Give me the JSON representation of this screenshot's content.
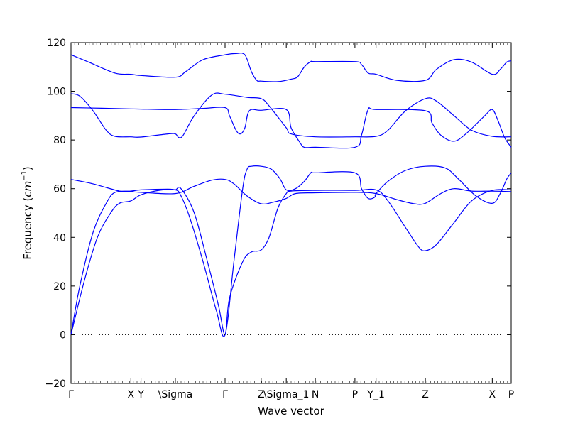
{
  "chart_data": {
    "type": "line",
    "title": "",
    "xlabel": "Wave vector",
    "ylabel": "Frequency (cm^-1)",
    "ylabel_parts": {
      "prefix": "Frequency (",
      "unit_base": "cm",
      "unit_exp": "−1",
      "suffix": ")"
    },
    "ylim": [
      -20,
      120
    ],
    "yticks": [
      "−20",
      "0",
      "20",
      "40",
      "60",
      "80",
      "100",
      "120"
    ],
    "ytick_values": [
      -20,
      0,
      20,
      40,
      60,
      80,
      100,
      120
    ],
    "xlim": [
      0,
      1
    ],
    "xticks": [
      {
        "x": 0.0,
        "label": "Γ"
      },
      {
        "x": 0.136,
        "label": "X"
      },
      {
        "x": 0.159,
        "label": "Y"
      },
      {
        "x": 0.237,
        "label": "\\Sigma"
      },
      {
        "x": 0.35,
        "label": "Γ"
      },
      {
        "x": 0.432,
        "label": "Z"
      },
      {
        "x": 0.489,
        "label": "\\Sigma_1"
      },
      {
        "x": 0.555,
        "label": "N"
      },
      {
        "x": 0.645,
        "label": "P"
      },
      {
        "x": 0.693,
        "label": "Y_1"
      },
      {
        "x": 0.805,
        "label": "Z"
      },
      {
        "x": 0.957,
        "label": "X"
      },
      {
        "x": 1.0,
        "label": "P"
      }
    ],
    "zero_line": true,
    "grid": false,
    "legend": "none",
    "color": "#0000ff",
    "series": [
      {
        "points": [
          [
            0,
            115
          ],
          [
            0.04,
            112
          ],
          [
            0.1,
            107.5
          ],
          [
            0.136,
            107
          ],
          [
            0.159,
            106.5
          ],
          [
            0.237,
            105.8
          ],
          [
            0.26,
            108
          ],
          [
            0.3,
            113
          ],
          [
            0.35,
            115
          ],
          [
            0.375,
            115.5
          ],
          [
            0.395,
            115
          ],
          [
            0.41,
            108
          ],
          [
            0.422,
            104.5
          ],
          [
            0.432,
            104.2
          ],
          [
            0.47,
            104
          ],
          [
            0.5,
            105
          ],
          [
            0.515,
            106
          ],
          [
            0.53,
            110
          ],
          [
            0.545,
            112.2
          ],
          [
            0.555,
            112.2
          ],
          [
            0.645,
            112.2
          ],
          [
            0.66,
            111
          ],
          [
            0.675,
            107.5
          ],
          [
            0.693,
            107
          ],
          [
            0.74,
            104.5
          ],
          [
            0.805,
            104.5
          ],
          [
            0.83,
            109
          ],
          [
            0.87,
            113
          ],
          [
            0.91,
            112
          ],
          [
            0.957,
            107
          ],
          [
            0.975,
            109
          ],
          [
            0.99,
            112
          ],
          [
            1.0,
            112.5
          ]
        ]
      },
      {
        "points": [
          [
            0,
            99
          ],
          [
            0.02,
            98
          ],
          [
            0.05,
            92
          ],
          [
            0.08,
            84
          ],
          [
            0.1,
            81.5
          ],
          [
            0.136,
            81.3
          ],
          [
            0.159,
            81.2
          ],
          [
            0.22,
            82.5
          ],
          [
            0.237,
            82.5
          ],
          [
            0.245,
            81
          ],
          [
            0.255,
            82
          ],
          [
            0.28,
            90
          ],
          [
            0.32,
            98.5
          ],
          [
            0.35,
            98.8
          ],
          [
            0.4,
            97.5
          ],
          [
            0.432,
            97
          ],
          [
            0.45,
            94
          ],
          [
            0.489,
            85
          ],
          [
            0.5,
            82.5
          ],
          [
            0.555,
            81.3
          ],
          [
            0.645,
            81.3
          ],
          [
            0.693,
            81.5
          ],
          [
            0.72,
            84
          ],
          [
            0.76,
            92
          ],
          [
            0.805,
            97
          ],
          [
            0.83,
            96
          ],
          [
            0.87,
            90
          ],
          [
            0.91,
            84
          ],
          [
            0.957,
            81.5
          ],
          [
            1.0,
            81.3
          ]
        ]
      },
      {
        "points": [
          [
            0,
            93.3
          ],
          [
            0.136,
            92.8
          ],
          [
            0.159,
            92.7
          ],
          [
            0.237,
            92.5
          ],
          [
            0.3,
            93
          ],
          [
            0.35,
            93.3
          ],
          [
            0.36,
            90
          ],
          [
            0.375,
            84
          ],
          [
            0.385,
            82.5
          ],
          [
            0.395,
            85
          ],
          [
            0.405,
            92
          ],
          [
            0.432,
            92.2
          ],
          [
            0.489,
            92.5
          ],
          [
            0.5,
            85
          ],
          [
            0.52,
            79
          ],
          [
            0.53,
            77
          ],
          [
            0.555,
            77
          ],
          [
            0.645,
            77
          ],
          [
            0.66,
            82
          ],
          [
            0.675,
            92.5
          ],
          [
            0.693,
            92.5
          ],
          [
            0.805,
            92
          ],
          [
            0.82,
            87
          ],
          [
            0.84,
            82
          ],
          [
            0.87,
            79.5
          ],
          [
            0.9,
            83
          ],
          [
            0.94,
            90
          ],
          [
            0.957,
            92.5
          ],
          [
            0.97,
            88
          ],
          [
            0.985,
            81
          ],
          [
            1.0,
            77
          ]
        ]
      },
      {
        "points": [
          [
            0,
            63.8
          ],
          [
            0.05,
            62
          ],
          [
            0.11,
            59
          ],
          [
            0.136,
            58.8
          ],
          [
            0.159,
            58.5
          ],
          [
            0.237,
            58
          ],
          [
            0.28,
            61
          ],
          [
            0.32,
            63.5
          ],
          [
            0.35,
            63.8
          ],
          [
            0.37,
            62
          ],
          [
            0.4,
            57
          ],
          [
            0.432,
            53.8
          ],
          [
            0.46,
            54.5
          ],
          [
            0.489,
            56
          ],
          [
            0.51,
            58
          ],
          [
            0.555,
            58.3
          ],
          [
            0.645,
            58.5
          ],
          [
            0.693,
            58
          ],
          [
            0.74,
            55.5
          ],
          [
            0.78,
            53.8
          ],
          [
            0.805,
            54
          ],
          [
            0.84,
            58
          ],
          [
            0.87,
            60
          ],
          [
            0.91,
            59
          ],
          [
            0.957,
            59
          ],
          [
            1.0,
            58.8
          ]
        ]
      },
      {
        "points": [
          [
            0,
            0
          ],
          [
            0.02,
            20
          ],
          [
            0.05,
            42
          ],
          [
            0.08,
            54
          ],
          [
            0.1,
            58.5
          ],
          [
            0.136,
            59
          ],
          [
            0.159,
            59.5
          ],
          [
            0.22,
            59.8
          ],
          [
            0.237,
            59.5
          ],
          [
            0.25,
            60
          ],
          [
            0.28,
            50
          ],
          [
            0.31,
            30
          ],
          [
            0.335,
            12
          ],
          [
            0.35,
            0
          ],
          [
            0.36,
            15
          ],
          [
            0.39,
            30
          ],
          [
            0.41,
            34
          ],
          [
            0.432,
            34.8
          ],
          [
            0.45,
            40
          ],
          [
            0.47,
            52
          ],
          [
            0.489,
            58
          ],
          [
            0.5,
            59
          ],
          [
            0.555,
            59.3
          ],
          [
            0.645,
            59.3
          ],
          [
            0.693,
            59.5
          ],
          [
            0.72,
            55
          ],
          [
            0.76,
            44
          ],
          [
            0.79,
            36
          ],
          [
            0.805,
            34.5
          ],
          [
            0.83,
            37
          ],
          [
            0.87,
            46
          ],
          [
            0.91,
            55
          ],
          [
            0.957,
            59.3
          ],
          [
            1.0,
            59.5
          ]
        ]
      },
      {
        "points": [
          [
            0,
            0
          ],
          [
            0.03,
            22
          ],
          [
            0.06,
            40
          ],
          [
            0.09,
            50
          ],
          [
            0.11,
            54
          ],
          [
            0.136,
            55
          ],
          [
            0.159,
            57.5
          ],
          [
            0.2,
            59.3
          ],
          [
            0.237,
            59.5
          ],
          [
            0.25,
            57
          ],
          [
            0.27,
            48
          ],
          [
            0.3,
            30
          ],
          [
            0.33,
            10
          ],
          [
            0.35,
            0
          ],
          [
            0.37,
            30
          ],
          [
            0.39,
            60
          ],
          [
            0.4,
            68
          ],
          [
            0.41,
            69.2
          ],
          [
            0.432,
            69.2
          ],
          [
            0.455,
            68
          ],
          [
            0.475,
            64
          ],
          [
            0.489,
            59.5
          ],
          [
            0.51,
            60
          ],
          [
            0.53,
            63
          ],
          [
            0.545,
            66.5
          ],
          [
            0.555,
            66.5
          ],
          [
            0.645,
            66.5
          ],
          [
            0.66,
            60
          ],
          [
            0.675,
            56
          ],
          [
            0.69,
            56.5
          ],
          [
            0.693,
            58
          ],
          [
            0.72,
            63
          ],
          [
            0.76,
            67.5
          ],
          [
            0.805,
            69.2
          ],
          [
            0.85,
            68.5
          ],
          [
            0.88,
            64
          ],
          [
            0.92,
            57
          ],
          [
            0.957,
            54
          ],
          [
            0.975,
            58
          ],
          [
            0.99,
            64
          ],
          [
            1.0,
            66.5
          ]
        ]
      }
    ]
  }
}
